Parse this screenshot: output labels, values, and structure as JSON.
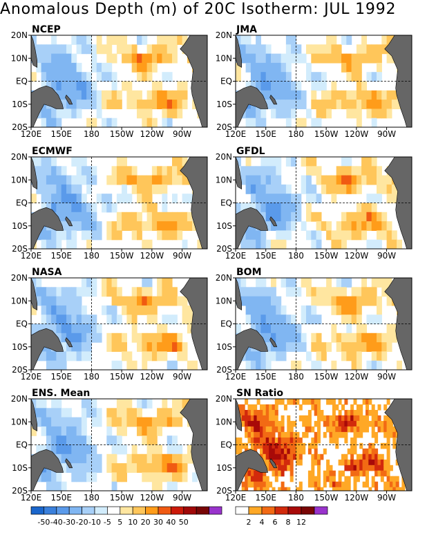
{
  "title": "Anomalous Depth (m) of 20C Isotherm: JUL 1992",
  "panels": [
    {
      "label": "NCEP",
      "seed": 11
    },
    {
      "label": "JMA",
      "seed": 23
    },
    {
      "label": "ECMWF",
      "seed": 37
    },
    {
      "label": "GFDL",
      "seed": 41
    },
    {
      "label": "NASA",
      "seed": 53
    },
    {
      "label": "BOM",
      "seed": 67
    },
    {
      "label": "ENS. Mean",
      "seed": 79
    },
    {
      "label": "SN Ratio",
      "seed": 97,
      "type": "sn"
    }
  ],
  "axes": {
    "x_ticks": [
      "120E",
      "150E",
      "180",
      "150W",
      "120W",
      "90W"
    ],
    "x_values": [
      120,
      150,
      180,
      210,
      240,
      270
    ],
    "y_ticks": [
      "20N",
      "10N",
      "EQ",
      "10S",
      "20S"
    ],
    "y_values": [
      20,
      10,
      0,
      -10,
      -20
    ],
    "lon_range": [
      120,
      295
    ],
    "lat_range": [
      -20,
      20
    ]
  },
  "colorbar_anomaly": {
    "labels": [
      "-50",
      "-40",
      "-30",
      "-20",
      "-10",
      "-5",
      "5",
      "10",
      "20",
      "30",
      "40",
      "50"
    ],
    "colors": [
      "#1a66cc",
      "#3a80dc",
      "#5a9aea",
      "#80b6f2",
      "#a8d0f8",
      "#d2ecfc",
      "#ffffff",
      "#ffe6a0",
      "#ffc65a",
      "#ff9c1a",
      "#f05a12",
      "#cc1a0a",
      "#a00808",
      "#780606",
      "#9933cc"
    ]
  },
  "colorbar_sn": {
    "labels": [
      "2",
      "4",
      "6",
      "8",
      "12"
    ],
    "colors": [
      "#ffffff",
      "#ffa826",
      "#f26a14",
      "#d22a0c",
      "#a80a08",
      "#7a0606",
      "#9933cc"
    ]
  },
  "colors": {
    "land": "#666666",
    "background": "#ffffff"
  }
}
